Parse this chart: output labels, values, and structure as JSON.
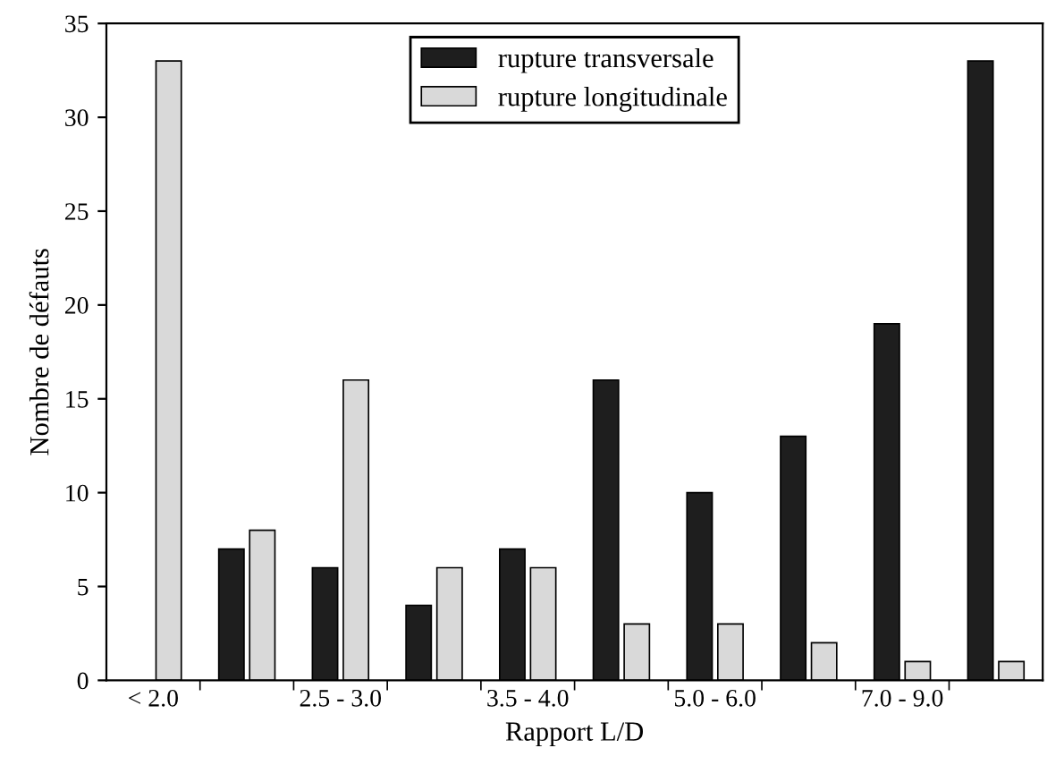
{
  "chart_data": {
    "type": "bar",
    "xlabel": "Rapport L/D",
    "ylabel": "Nombre de défauts",
    "categories": [
      "< 2.0",
      null,
      "2.5 - 3.0",
      null,
      "3.5 - 4.0",
      null,
      "5.0 - 6.0",
      null,
      "7.0 - 9.0",
      null
    ],
    "series": [
      {
        "name": "rupture transversale",
        "color": "#1e1e1e",
        "values": [
          null,
          7,
          6,
          4,
          7,
          16,
          10,
          13,
          19,
          33
        ]
      },
      {
        "name": "rupture longitudinale",
        "color": "#d9d9d9",
        "values": [
          33,
          8,
          16,
          6,
          6,
          3,
          3,
          2,
          1,
          1
        ]
      }
    ],
    "ylim": [
      0,
      35
    ],
    "yticks": [
      0,
      5,
      10,
      15,
      20,
      25,
      30,
      35
    ],
    "grid": false,
    "legend": "top"
  }
}
